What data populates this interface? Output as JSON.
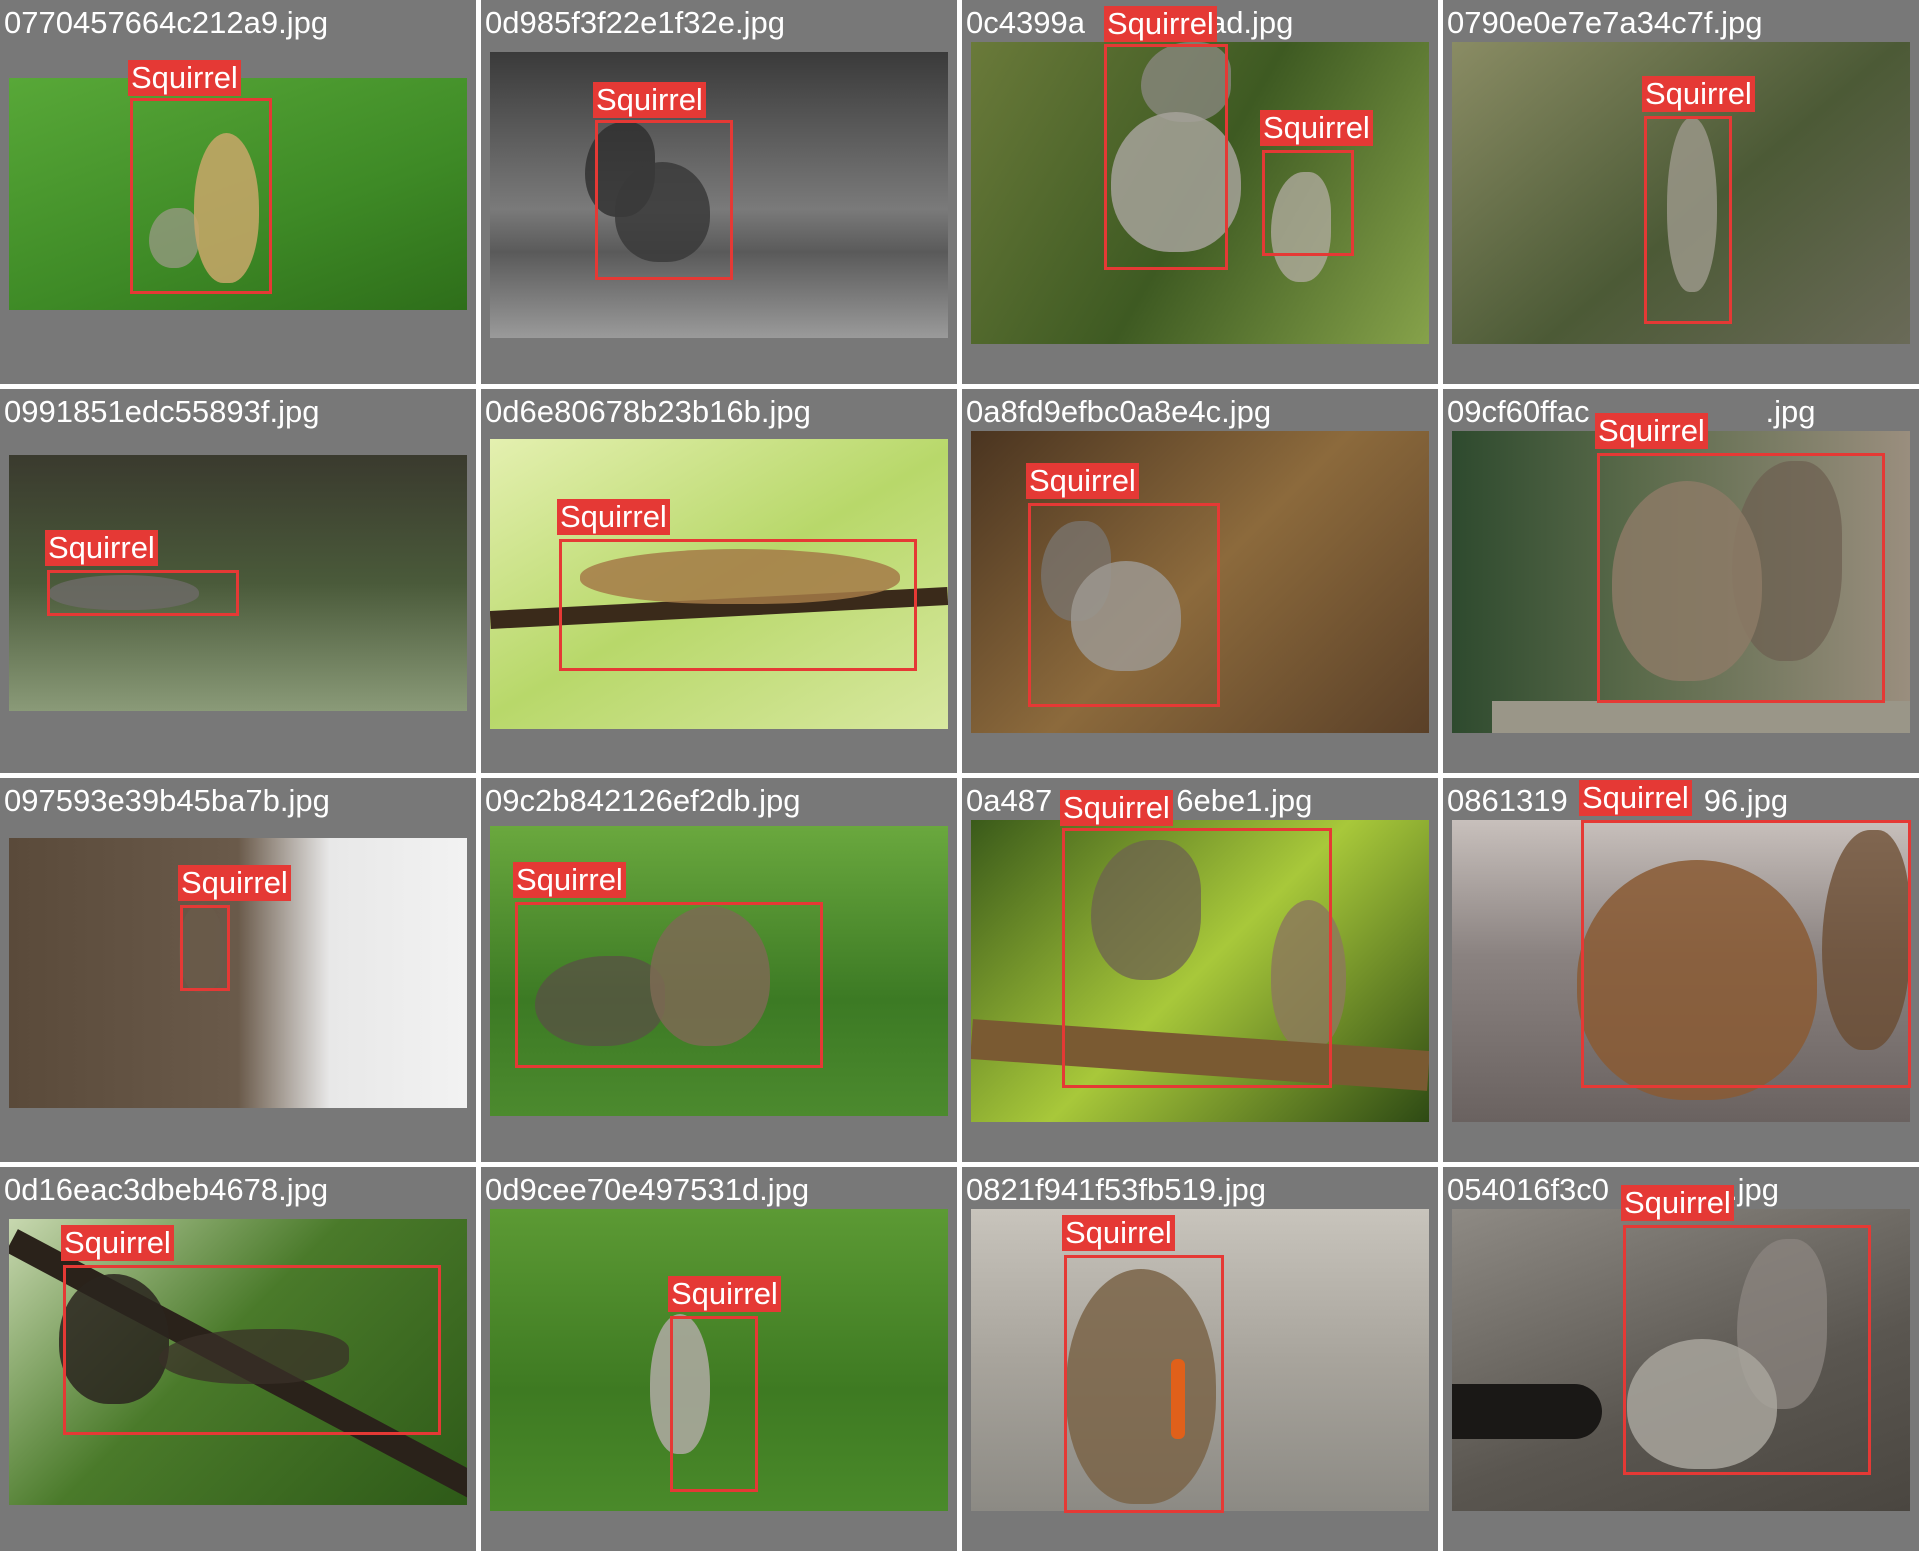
{
  "label_color": "#e53935",
  "cells": [
    {
      "filename": "0770457664c212a9.jpg",
      "bg": "#3e8a26",
      "bg2": "#58a838",
      "label": "Squirrel",
      "animal_color": "#c9a76a"
    },
    {
      "filename": "0d985f3f22e1f32e.jpg",
      "bg": "#5a5a5a",
      "bg2": "#9a9a9a",
      "label": "Squirrel",
      "animal_color": "#2c2c2c"
    },
    {
      "filename": "0c4399a",
      "filename_tail": "ad.jpg",
      "bg": "#4f6a2a",
      "bg2": "#86a24a",
      "labels": [
        "Squirrel",
        "Squirrel"
      ],
      "animal_color": "#a6a29a"
    },
    {
      "filename": "0790e0e7e7a34c7f.jpg",
      "bg": "#4c5a36",
      "bg2": "#8a8c64",
      "label": "Squirrel",
      "animal_color": "#9a9688"
    },
    {
      "filename": "0991851edc55893f.jpg",
      "bg": "#4a5a3a",
      "bg2": "#8a9a78",
      "label": "Squirrel",
      "animal_color": "#6c6a66"
    },
    {
      "filename": "0d6e80678b23b16b.jpg",
      "bg": "#b8d86a",
      "bg2": "#e4f0b0",
      "label": "Squirrel",
      "animal_color": "#a47a48"
    },
    {
      "filename": "0a8fd9efbc0a8e4c.jpg",
      "bg": "#4a3420",
      "bg2": "#8c6a3c",
      "label": "Squirrel",
      "animal_color": "#9c9890"
    },
    {
      "filename": "09cf60ffac",
      "filename_tail": ".jpg",
      "bg": "#2e4a2e",
      "bg2": "#9a8e7e",
      "label": "Squirrel",
      "animal_color": "#8c7a66"
    },
    {
      "filename": "097593e39b45ba7b.jpg",
      "bg": "#5a4a3a",
      "bg2": "#e8e8e8",
      "label": "Squirrel",
      "animal_color": "#6a5a4a"
    },
    {
      "filename": "09c2b842126ef2db.jpg",
      "bg": "#3c7a24",
      "bg2": "#6aa83e",
      "label": "Squirrel",
      "animal_color": "#7c6a54"
    },
    {
      "filename": "0a487",
      "filename_tail": "6ebe1.jpg",
      "bg": "#3a5a1a",
      "bg2": "#a8c83a",
      "label": "Squirrel",
      "animal_color": "#8c7a5a"
    },
    {
      "filename": "0861319",
      "filename_tail": "96.jpg",
      "bg": "#6a6260",
      "bg2": "#c8c0bc",
      "label": "Squirrel",
      "animal_color": "#8a5a34"
    },
    {
      "filename": "0d16eac3dbeb4678.jpg",
      "bg": "#4a7a2a",
      "bg2": "#c8d8b0",
      "label": "Squirrel",
      "animal_color": "#2a241e"
    },
    {
      "filename": "0d9cee70e497531d.jpg",
      "bg": "#3e7a22",
      "bg2": "#5c9a34",
      "label": "Squirrel",
      "animal_color": "#b0aaa4"
    },
    {
      "filename": "0821f941f53fb519.jpg",
      "bg": "#8c8a84",
      "bg2": "#c8c4bc",
      "label": "Squirrel",
      "animal_color": "#7a6448"
    },
    {
      "filename": "054016f3c0",
      "filename_tail": ".jpg",
      "bg": "#5a5650",
      "bg2": "#8e8a84",
      "label": "Squirrel",
      "animal_color": "#a8a49c"
    }
  ]
}
